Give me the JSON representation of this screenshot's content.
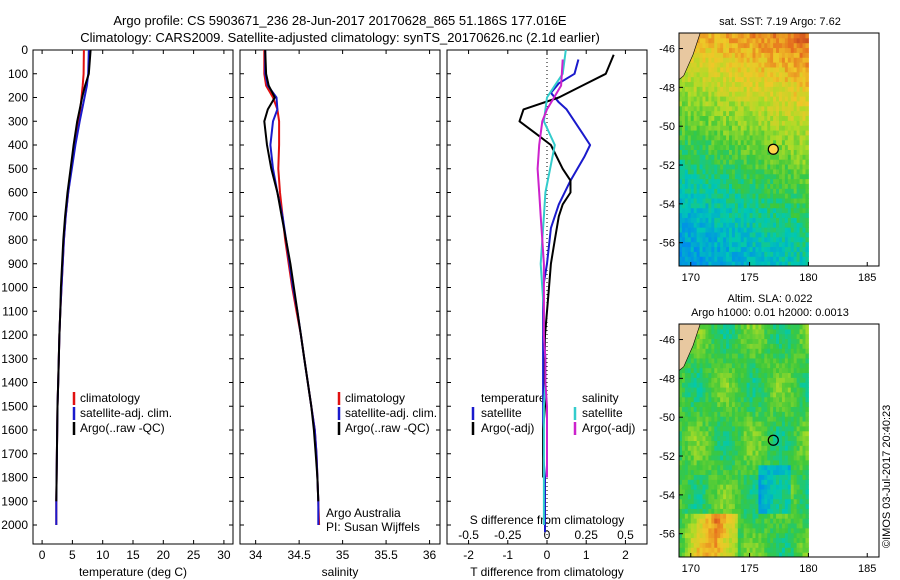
{
  "header": {
    "title1": "Argo profile: CS 5903671_236 28-Jun-2017 20170628_865 51.186S 177.016E",
    "title2": "Climatology: CARS2009. Satellite-adjusted climatology: synTS_20170626.nc (2.1d earlier)"
  },
  "colors": {
    "climatology": "#e01010",
    "satellite": "#1a1acc",
    "argo": "#000000",
    "salinity_satellite": "#33cccc",
    "salinity_argo": "#cc22cc"
  },
  "depth_ticks": [
    "0",
    "100",
    "200",
    "300",
    "400",
    "500",
    "600",
    "700",
    "800",
    "900",
    "1000",
    "1100",
    "1200",
    "1300",
    "1400",
    "1500",
    "1600",
    "1700",
    "1800",
    "1900",
    "2000"
  ],
  "chart_data": [
    {
      "type": "line",
      "xlabel": "temperature (deg C)",
      "x_ticks": [
        "0",
        "5",
        "10",
        "15",
        "20",
        "25",
        "30"
      ],
      "xlim": [
        -1.5,
        31.5
      ],
      "ylim": [
        2080,
        0
      ],
      "legend": {
        "placement": "bottom-center",
        "entries": [
          "climatology",
          "satellite-adj. clim.",
          "Argo(..raw -QC)"
        ]
      },
      "series": [
        {
          "name": "climatology",
          "color_key": "climatology",
          "x": [
            6.9,
            6.85,
            6.7,
            6.5,
            6.3,
            6.0,
            5.4,
            4.8,
            4.3,
            3.9,
            3.6,
            3.4,
            3.2,
            3.0,
            2.85,
            2.75,
            2.65,
            2.55,
            2.5,
            2.45,
            2.4,
            2.35,
            2.35
          ],
          "y": [
            0,
            100,
            150,
            200,
            250,
            300,
            400,
            500,
            600,
            700,
            800,
            900,
            1000,
            1100,
            1200,
            1300,
            1400,
            1500,
            1600,
            1700,
            1800,
            1900,
            2000
          ]
        },
        {
          "name": "satellite-adj. clim.",
          "color_key": "satellite",
          "x": [
            7.7,
            7.6,
            7.4,
            7.0,
            6.6,
            6.2,
            5.5,
            4.9,
            4.3,
            3.9,
            3.6,
            3.4,
            3.2,
            3.0,
            2.85,
            2.75,
            2.65,
            2.55,
            2.5,
            2.45,
            2.4,
            2.35,
            2.35
          ],
          "y": [
            0,
            100,
            150,
            200,
            250,
            300,
            400,
            500,
            600,
            700,
            800,
            900,
            1000,
            1100,
            1200,
            1300,
            1400,
            1500,
            1600,
            1700,
            1800,
            1900,
            2000
          ]
        },
        {
          "name": "Argo(..raw -QC)",
          "color_key": "argo",
          "x": [
            8.0,
            7.7,
            7.1,
            6.6,
            6.2,
            5.8,
            5.2,
            4.7,
            4.2,
            3.8,
            3.5,
            3.3,
            3.1,
            3.0,
            2.85,
            2.75,
            2.65,
            2.55,
            2.5,
            2.45,
            2.4,
            2.35
          ],
          "y": [
            0,
            100,
            150,
            200,
            250,
            300,
            400,
            500,
            600,
            700,
            800,
            900,
            1000,
            1100,
            1200,
            1300,
            1400,
            1500,
            1600,
            1700,
            1800,
            1900
          ]
        }
      ]
    },
    {
      "type": "line",
      "xlabel": "salinity",
      "x_ticks": [
        "34",
        "34.5",
        "35",
        "35.5",
        "36"
      ],
      "xlim": [
        33.82,
        36.12
      ],
      "ylim": [
        2080,
        0
      ],
      "legend": {
        "placement": "bottom-right",
        "entries": [
          "climatology",
          "satellite-adj. clim.",
          "Argo(..raw -QC)"
        ]
      },
      "series": [
        {
          "name": "climatology",
          "color_key": "climatology",
          "x": [
            34.1,
            34.1,
            34.12,
            34.2,
            34.25,
            34.27,
            34.27,
            34.26,
            34.28,
            34.31,
            34.34,
            34.38,
            34.42,
            34.47,
            34.52,
            34.56,
            34.6,
            34.64,
            34.68,
            34.7,
            34.71,
            34.72,
            34.73
          ],
          "y": [
            0,
            100,
            150,
            200,
            250,
            300,
            400,
            500,
            600,
            700,
            800,
            900,
            1000,
            1100,
            1200,
            1300,
            1400,
            1500,
            1600,
            1700,
            1800,
            1900,
            2000
          ]
        },
        {
          "name": "satellite-adj. clim.",
          "color_key": "satellite",
          "x": [
            34.11,
            34.11,
            34.14,
            34.24,
            34.25,
            34.2,
            34.17,
            34.2,
            34.25,
            34.31,
            34.35,
            34.39,
            34.43,
            34.48,
            34.52,
            34.56,
            34.6,
            34.64,
            34.68,
            34.7,
            34.71,
            34.72,
            34.72
          ],
          "y": [
            0,
            100,
            150,
            200,
            250,
            300,
            400,
            500,
            600,
            700,
            800,
            900,
            1000,
            1100,
            1200,
            1300,
            1400,
            1500,
            1600,
            1700,
            1800,
            1900,
            2000
          ]
        },
        {
          "name": "Argo(..raw -QC)",
          "color_key": "argo",
          "x": [
            34.11,
            34.12,
            34.15,
            34.22,
            34.14,
            34.1,
            34.13,
            34.18,
            34.25,
            34.3,
            34.35,
            34.4,
            34.44,
            34.48,
            34.52,
            34.56,
            34.6,
            34.64,
            34.67,
            34.69,
            34.71,
            34.72
          ],
          "y": [
            0,
            100,
            150,
            200,
            250,
            300,
            400,
            500,
            600,
            700,
            800,
            900,
            1000,
            1100,
            1200,
            1300,
            1400,
            1500,
            1600,
            1700,
            1800,
            1900
          ]
        }
      ],
      "annotation": [
        "Argo Australia",
        "PI: Susan Wijffels"
      ]
    },
    {
      "type": "line",
      "xlabel": "T difference from climatology",
      "x_ticks": [
        "-2",
        "-1",
        "0",
        "1",
        "2"
      ],
      "xlim": [
        -2.55,
        2.55
      ],
      "top_xlabel": "S difference from climatology",
      "top_x_ticks": [
        "-0.5",
        "-0.25",
        "0",
        "0.25",
        "0.5"
      ],
      "top_xlim": [
        -0.6375,
        0.6375
      ],
      "ylim": [
        2080,
        0
      ],
      "legend": {
        "placement": "bottom",
        "groups": [
          {
            "title": "temperature",
            "entries": [
              "satellite",
              "Argo(-adj)"
            ]
          },
          {
            "title": "salinity",
            "entries": [
              "satellite",
              "Argo(-adj)"
            ]
          }
        ]
      },
      "series": [
        {
          "name": "temperature satellite",
          "color_key": "satellite",
          "axis": "T",
          "x": [
            0.8,
            0.7,
            0.3,
            0.1,
            0.3,
            0.5,
            0.7,
            0.9,
            1.1,
            0.95,
            0.6,
            0.3,
            0.1,
            0.0,
            -0.1,
            -0.1,
            -0.1,
            -0.1,
            -0.1,
            -0.1,
            -0.1,
            -0.1,
            -0.05,
            -0.05,
            -0.05,
            -0.05
          ],
          "y": [
            40,
            100,
            140,
            180,
            220,
            250,
            300,
            350,
            400,
            450,
            550,
            650,
            750,
            900,
            1000,
            1100,
            1200,
            1300,
            1400,
            1500,
            1600,
            1700,
            1800,
            1900,
            2000,
            2030
          ]
        },
        {
          "name": "temperature Argo(-adj)",
          "color_key": "argo",
          "axis": "T",
          "x": [
            1.7,
            1.5,
            0.9,
            0.3,
            -0.6,
            -0.7,
            -0.3,
            0.1,
            0.4,
            0.6,
            0.6,
            0.4,
            0.3,
            0.2,
            0.1,
            0.05,
            0.0,
            -0.05,
            -0.05,
            -0.05,
            -0.05,
            -0.1,
            -0.1,
            -0.1
          ],
          "y": [
            20,
            100,
            150,
            200,
            250,
            300,
            350,
            400,
            500,
            550,
            600,
            650,
            700,
            800,
            900,
            1000,
            1100,
            1200,
            1300,
            1400,
            1500,
            1600,
            1700,
            1800
          ]
        },
        {
          "name": "salinity satellite",
          "color_key": "salinity_satellite",
          "axis": "S",
          "x": [
            0.12,
            0.1,
            0.05,
            0.0,
            -0.02,
            0.05,
            0.02,
            -0.01,
            -0.02,
            -0.03,
            -0.04,
            -0.03,
            -0.02,
            -0.02,
            -0.01,
            -0.01,
            -0.02,
            -0.02,
            -0.02,
            -0.02,
            -0.02,
            -0.02
          ],
          "y": [
            0,
            100,
            150,
            200,
            300,
            400,
            500,
            600,
            700,
            800,
            900,
            1000,
            1100,
            1200,
            1300,
            1400,
            1500,
            1600,
            1700,
            1800,
            1900,
            2000
          ]
        },
        {
          "name": "salinity Argo(-adj)",
          "color_key": "salinity_argo",
          "axis": "S",
          "x": [
            0.1,
            0.09,
            0.0,
            -0.03,
            -0.05,
            -0.06,
            -0.05,
            -0.04,
            -0.03,
            -0.02,
            -0.02,
            -0.02,
            -0.02,
            -0.01,
            -0.01,
            0.0,
            0.0,
            0.0,
            0.0
          ],
          "y": [
            40,
            150,
            250,
            300,
            400,
            500,
            600,
            700,
            800,
            900,
            1000,
            1100,
            1200,
            1300,
            1400,
            1500,
            1600,
            1700,
            1800
          ]
        }
      ]
    },
    {
      "type": "heatmap",
      "title": "sat. SST: 7.19 Argo: 7.62",
      "x_ticks": [
        "170",
        "175",
        "180",
        "185"
      ],
      "xlim": [
        169,
        186
      ],
      "y_ticks": [
        "-46",
        "-48",
        "-50",
        "-52",
        "-54",
        "-56"
      ],
      "ylim": [
        -57.2,
        -45.2
      ],
      "data_extent": {
        "lon": [
          169,
          180
        ],
        "lat": [
          -57.2,
          -45.2
        ]
      },
      "marker": {
        "lon": 177.016,
        "lat": -51.186
      }
    },
    {
      "type": "heatmap",
      "title": "Altim. SLA: 0.022",
      "subtitle": "Argo h1000: 0.01 h2000: 0.0013",
      "x_ticks": [
        "170",
        "175",
        "180",
        "185"
      ],
      "xlim": [
        169,
        186
      ],
      "y_ticks": [
        "-46",
        "-48",
        "-50",
        "-52",
        "-54",
        "-56"
      ],
      "ylim": [
        -57.2,
        -45.2
      ],
      "data_extent": {
        "lon": [
          169,
          180
        ],
        "lat": [
          -57.2,
          -45.2
        ]
      },
      "marker": {
        "lon": 177.016,
        "lat": -51.186
      }
    }
  ],
  "footer": {
    "credit": "©IMOS 03-Jul-2017 20:40:23"
  }
}
